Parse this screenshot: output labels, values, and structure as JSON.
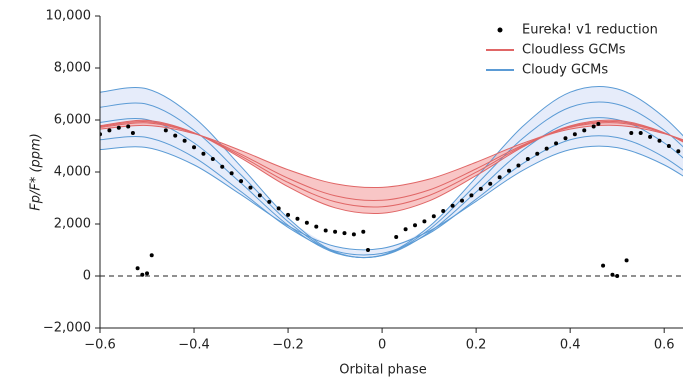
{
  "chart_data": {
    "type": "scatter",
    "xlabel": "Orbital phase",
    "ylabel": "Fp/F* (ppm)",
    "xlim": [
      -0.6,
      0.64
    ],
    "ylim": [
      -2000,
      10000
    ],
    "xticks": [
      {
        "value": -0.6,
        "label": "−0.6"
      },
      {
        "value": -0.4,
        "label": "−0.4"
      },
      {
        "value": -0.2,
        "label": "−0.2"
      },
      0,
      0.2,
      0.4,
      0.6
    ],
    "yticks": [
      {
        "value": -2000,
        "label": "−2,000"
      },
      0,
      {
        "value": 2000,
        "label": "2,000"
      },
      {
        "value": 4000,
        "label": "4,000"
      },
      {
        "value": 6000,
        "label": "6,000"
      },
      {
        "value": 8000,
        "label": "8,000"
      },
      {
        "value": 10000,
        "label": "10,000"
      }
    ],
    "hline": 0,
    "legend": "upper right",
    "series": [
      {
        "name": "Eureka! v1 reduction",
        "color": "#000000",
        "x": [
          -0.6,
          -0.58,
          -0.56,
          -0.54,
          -0.53,
          -0.52,
          -0.51,
          -0.5,
          -0.49,
          -0.46,
          -0.44,
          -0.42,
          -0.4,
          -0.38,
          -0.36,
          -0.34,
          -0.32,
          -0.3,
          -0.28,
          -0.26,
          -0.24,
          -0.22,
          -0.2,
          -0.18,
          -0.16,
          -0.14,
          -0.12,
          -0.1,
          -0.08,
          -0.06,
          -0.04,
          -0.03,
          0.03,
          0.05,
          0.07,
          0.09,
          0.11,
          0.13,
          0.15,
          0.17,
          0.19,
          0.21,
          0.23,
          0.25,
          0.27,
          0.29,
          0.31,
          0.33,
          0.35,
          0.37,
          0.39,
          0.41,
          0.43,
          0.45,
          0.46,
          0.47,
          0.49,
          0.5,
          0.52,
          0.53,
          0.55,
          0.57,
          0.59,
          0.61,
          0.63
        ],
        "values": [
          5450,
          5600,
          5700,
          5750,
          5500,
          300,
          50,
          100,
          800,
          5600,
          5400,
          5200,
          4950,
          4700,
          4500,
          4200,
          3950,
          3650,
          3400,
          3100,
          2850,
          2600,
          2350,
          2200,
          2050,
          1900,
          1750,
          1700,
          1650,
          1600,
          1700,
          1000,
          1500,
          1800,
          1950,
          2100,
          2300,
          2500,
          2700,
          2900,
          3100,
          3350,
          3550,
          3800,
          4050,
          4250,
          4500,
          4700,
          4900,
          5100,
          5300,
          5450,
          5600,
          5750,
          5850,
          400,
          50,
          0,
          600,
          5500,
          5500,
          5350,
          5200,
          5000,
          4800
        ]
      },
      {
        "name": "Cloudless GCMs",
        "color": "#e06666",
        "fill": "#f6b3b3",
        "x": [
          -0.6,
          -0.5,
          -0.4,
          -0.3,
          -0.2,
          -0.1,
          0,
          0.1,
          0.2,
          0.3,
          0.4,
          0.5,
          0.6,
          0.7
        ],
        "models": [
          [
            5777,
            5986,
            5512,
            4537,
            3433,
            2623,
            2414,
            2888,
            3863,
            4967,
            5777,
            5986,
            5512,
            4537
          ],
          [
            5714,
            5888,
            5494,
            4681,
            3761,
            3086,
            2912,
            3307,
            4120,
            5039,
            5714,
            5888,
            5494,
            4681
          ],
          [
            5651,
            5790,
            5475,
            4824,
            4089,
            3549,
            3410,
            3725,
            4376,
            5111,
            5651,
            5790,
            5475,
            4824
          ],
          [
            5745,
            5937,
            5503,
            4609,
            3597,
            2855,
            2663,
            3097,
            3991,
            5003,
            5745,
            5937,
            5503,
            4609
          ]
        ]
      },
      {
        "name": "Cloudy GCMs",
        "color": "#5b9bd5",
        "fill": "#dde6f8",
        "x": [
          -0.6,
          -0.5,
          -0.4,
          -0.3,
          -0.2,
          -0.1,
          0,
          0.1,
          0.2,
          0.3,
          0.4,
          0.5,
          0.6,
          0.7
        ],
        "models": [
          [
            7069,
            7198,
            6102,
            4208,
            2231,
            931,
            802,
            1898,
            3792,
            5769,
            7069,
            7198,
            6102,
            4208
          ],
          [
            6490,
            6607,
            5611,
            3889,
            2092,
            910,
            793,
            1789,
            3511,
            5308,
            6490,
            6607,
            5611,
            3889
          ],
          [
            5911,
            6016,
            5120,
            3570,
            1953,
            889,
            784,
            1680,
            3230,
            4847,
            5911,
            6016,
            5120,
            3570
          ],
          [
            5239,
            5329,
            4565,
            3245,
            1867,
            961,
            871,
            1635,
            2955,
            4333,
            5239,
            5329,
            4565,
            3245
          ],
          [
            4860,
            4938,
            4274,
            3126,
            1928,
            1140,
            1062,
            1726,
            2874,
            4072,
            4860,
            4938,
            4274,
            3126
          ]
        ]
      }
    ]
  }
}
